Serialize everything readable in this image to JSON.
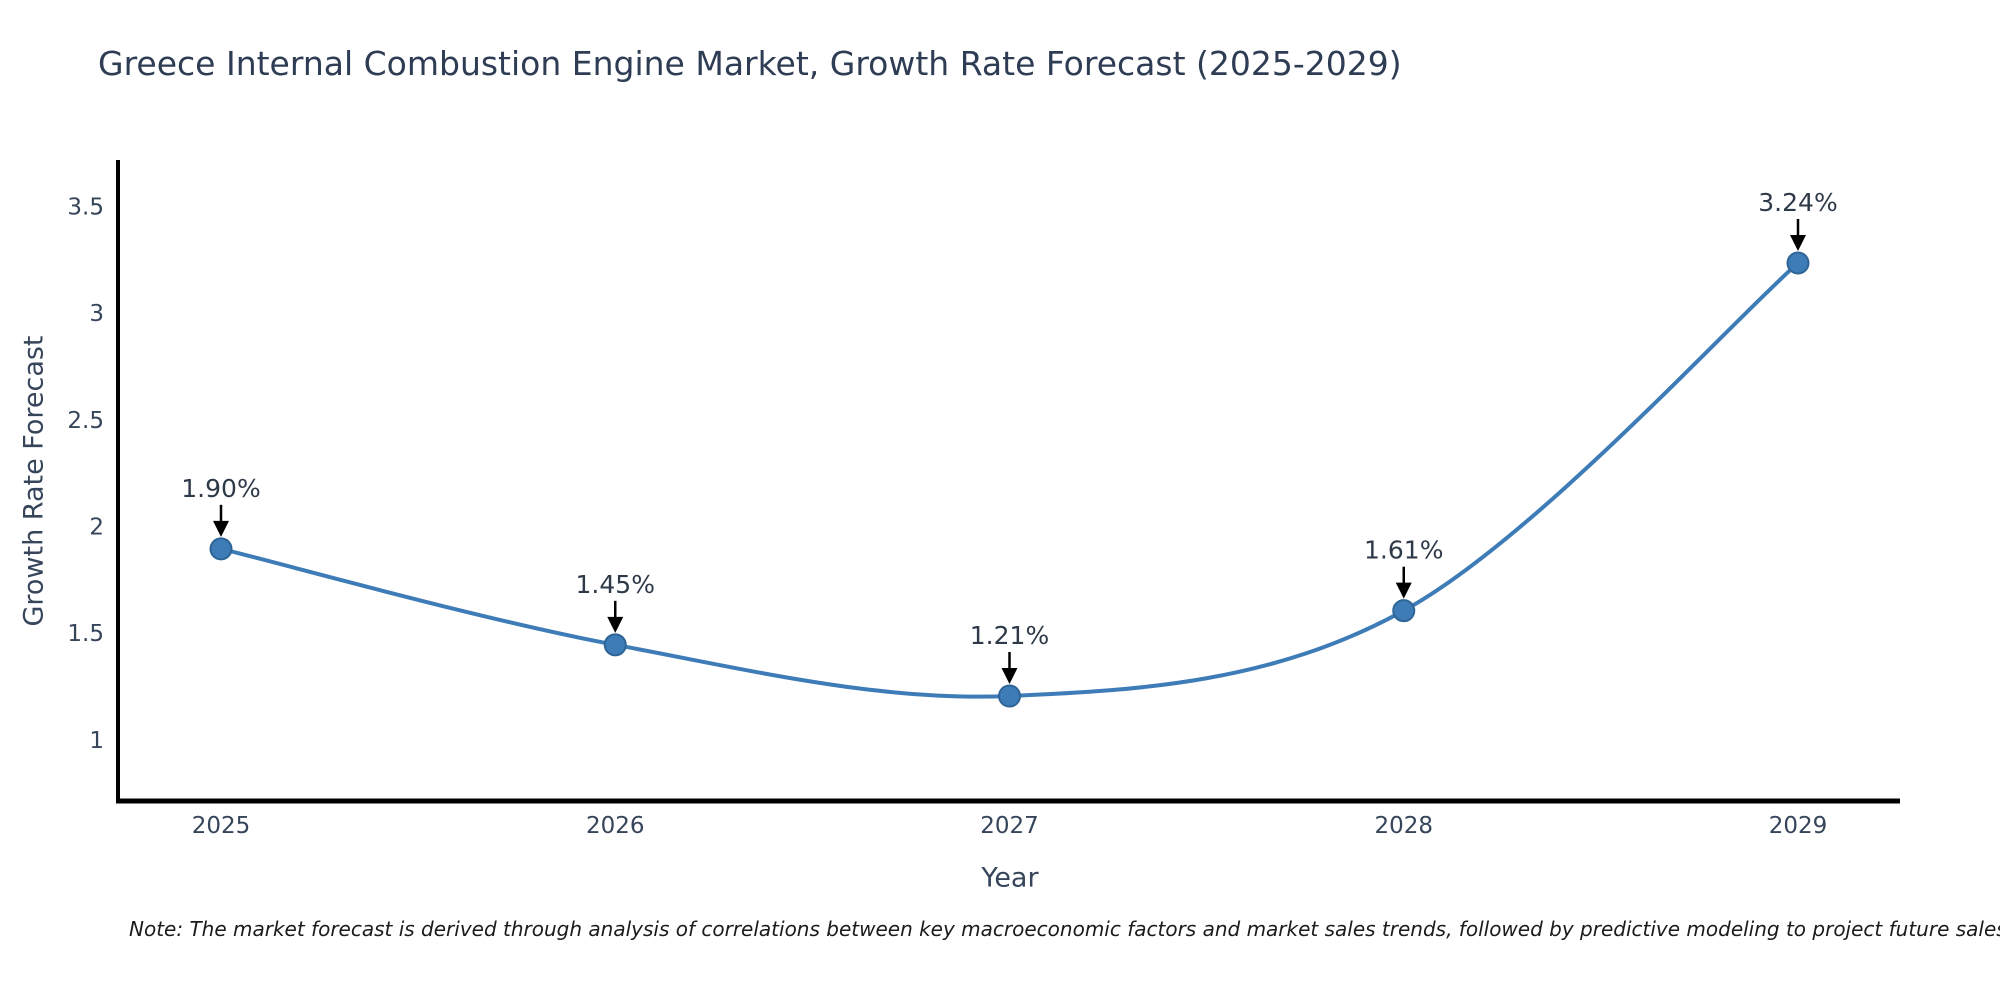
{
  "chart_data": {
    "type": "line",
    "title": "Greece Internal Combustion Engine Market, Growth Rate Forecast (2025-2029)",
    "xlabel": "Year",
    "ylabel": "Growth Rate Forecast",
    "x": [
      2025,
      2026,
      2027,
      2028,
      2029
    ],
    "xticklabels": [
      "2025",
      "2026",
      "2027",
      "2028",
      "2029"
    ],
    "series": [
      {
        "name": "Growth Rate Forecast",
        "values": [
          1.9,
          1.45,
          1.21,
          1.61,
          3.24
        ],
        "point_labels": [
          "1.90%",
          "1.45%",
          "1.21%",
          "1.61%",
          "3.24%"
        ]
      }
    ],
    "yticks": [
      1,
      1.5,
      2,
      2.5,
      3,
      3.5
    ],
    "yticklabels": [
      "1",
      "1.5",
      "2",
      "2.5",
      "3",
      "3.5"
    ],
    "ylim": [
      0.71,
      3.73
    ],
    "grid": false,
    "legend": "none",
    "marker": "circle",
    "annotation_style": "value label with downward arrow to point",
    "note": "Note: The market forecast is derived through analysis of correlations between key macroeconomic factors and market sales trends, followed by predictive modeling to project future sales"
  },
  "colors": {
    "background": "#ffffff",
    "line": "#3e7cb8",
    "marker_fill": "#3e7cb8",
    "marker_edge": "#2f6496",
    "axis_line": "#000000",
    "arrow": "#000000",
    "title_text": "#2e3d54",
    "axis_text": "#36455a",
    "annotation_text": "#2f3a48",
    "note_text": "#1b1b1b"
  }
}
